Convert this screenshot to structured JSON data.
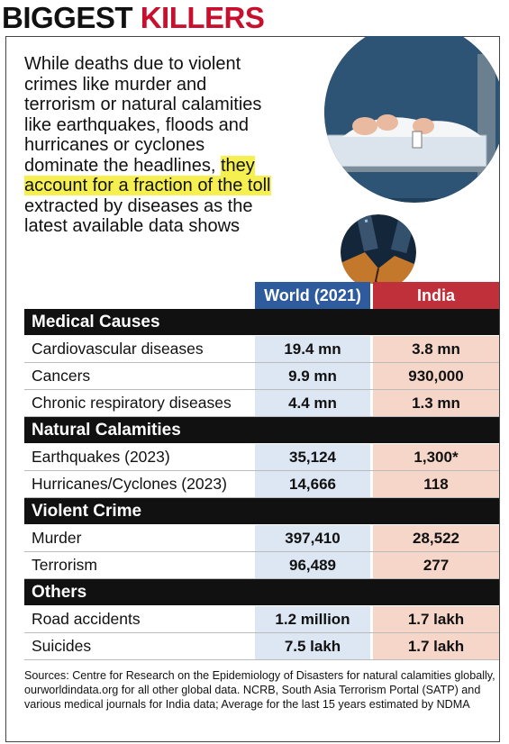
{
  "title": {
    "part1": "BIGGEST ",
    "part2": "KILLERS"
  },
  "intro": {
    "before": "While deaths due to violent crimes like murder and terrorism or natural calamities like earthquakes, floods and hurricanes or cyclones dominate the headlines, ",
    "highlight": "they account for a fraction of the toll",
    "after": " extracted by diseases as the latest available data shows"
  },
  "columns": {
    "world": "World (2021)",
    "india": "India"
  },
  "sections": [
    {
      "name": "Medical Causes",
      "rows": [
        {
          "label": "Cardiovascular diseases",
          "world": "19.4 mn",
          "india": "3.8 mn"
        },
        {
          "label": "Cancers",
          "world": "9.9 mn",
          "india": "930,000"
        },
        {
          "label": "Chronic respiratory diseases",
          "world": "4.4 mn",
          "india": "1.3 mn"
        }
      ]
    },
    {
      "name": "Natural Calamities",
      "rows": [
        {
          "label": "Earthquakes (2023)",
          "world": "35,124",
          "india": "1,300*"
        },
        {
          "label": "Hurricanes/Cyclones (2023)",
          "world": "14,666",
          "india": "118"
        }
      ]
    },
    {
      "name": "Violent Crime",
      "rows": [
        {
          "label": "Murder",
          "world": "397,410",
          "india": "28,522"
        },
        {
          "label": "Terrorism",
          "world": "96,489",
          "india": "277"
        }
      ]
    },
    {
      "name": "Others",
      "rows": [
        {
          "label": "Road accidents",
          "world": "1.2 million",
          "india": "1.7 lakh"
        },
        {
          "label": "Suicides",
          "world": "7.5 lakh",
          "india": "1.7 lakh"
        }
      ]
    }
  ],
  "sources": "Sources: Centre for Research on the Epidemiology of Disasters for natural calamities globally, ourworldindata.org for all other global data. NCRB, South Asia Terrorism Portal (SATP) and various medical journals for India data; Average for the last 15 years estimated by NDMA"
}
